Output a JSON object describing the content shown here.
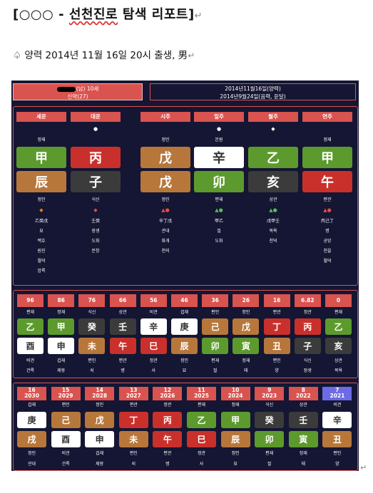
{
  "doc": {
    "title_prefix": "[○○○ - ",
    "title_main": "선천진로",
    "title_rest": " 탐색 리포트]",
    "return_mark": "↵",
    "subtitle": "♤ 양력 2014년 11월 16일 20시 출생, 男"
  },
  "header": {
    "left_line1": "(남) 10세",
    "left_line2": "신약(27)",
    "right_line1": "2014년11월16일(양력)",
    "right_line2": "2014년9월24일(음력, 윤달)"
  },
  "pillars": [
    {
      "label": "세운",
      "top_god": "정재",
      "dot": "",
      "stem": "甲",
      "stem_color": "green",
      "branch": "辰",
      "branch_color": "brown",
      "bottom_god": "정인",
      "sym": "◆",
      "sym_color": "#e67e22",
      "hidden": "乙癸戊",
      "stage": "묘",
      "s1": "백호",
      "s2": "원진",
      "s3": "월덕",
      "s4": "암록"
    },
    {
      "label": "대운",
      "top_god": "",
      "dot": "●",
      "stem": "丙",
      "stem_color": "red",
      "branch": "子",
      "branch_color": "dark",
      "bottom_god": "식신",
      "sym": "◆",
      "sym_color": "#e74c3c",
      "hidden": "壬癸",
      "stage": "장생",
      "s1": "도화",
      "s2": "문창",
      "s3": "",
      "s4": ""
    },
    {
      "label": "시주",
      "top_god": "정인",
      "dot": "",
      "stem": "戊",
      "stem_color": "brown",
      "branch": "戊",
      "branch_color": "brown",
      "bottom_god": "정인",
      "sym": "▲●",
      "sym_color": "#e74c3c",
      "hidden": "辛丁戊",
      "stage": "관대",
      "s1": "화개",
      "s2": "천의",
      "s3": "",
      "s4": ""
    },
    {
      "label": "일주",
      "top_god": "본원",
      "dot": "●",
      "stem": "辛",
      "stem_color": "white",
      "branch": "卯",
      "branch_color": "green",
      "bottom_god": "편재",
      "sym": "▲●",
      "sym_color": "#5cb85c",
      "hidden": "甲乙",
      "stage": "절",
      "s1": "도화",
      "s2": "",
      "s3": "",
      "s4": ""
    },
    {
      "label": "월주",
      "top_god": "",
      "dot": "◆",
      "stem": "乙",
      "stem_color": "green",
      "branch": "亥",
      "branch_color": "dark",
      "bottom_god": "상관",
      "sym": "▲●",
      "sym_color": "#5cb85c",
      "hidden": "戊甲壬",
      "stage": "목욕",
      "s1": "천덕",
      "s2": "",
      "s3": "",
      "s4": ""
    },
    {
      "label": "연주",
      "top_god": "정재",
      "dot": "",
      "stem": "甲",
      "stem_color": "green",
      "branch": "午",
      "branch_color": "red",
      "bottom_god": "편관",
      "sym": "▲●",
      "sym_color": "#e74c3c",
      "hidden": "丙己丁",
      "stage": "병",
      "s1": "공망",
      "s2": "천을",
      "s3": "월덕",
      "s4": ""
    }
  ],
  "daeun": [
    {
      "age": "96",
      "god": "편재",
      "stem": "乙",
      "sc": "green",
      "branch": "酉",
      "bc": "white",
      "bgod": "비견",
      "stage": "건록"
    },
    {
      "age": "86",
      "god": "정재",
      "stem": "甲",
      "sc": "green",
      "branch": "申",
      "bc": "white",
      "bgod": "겁재",
      "stage": "제왕"
    },
    {
      "age": "76",
      "god": "식신",
      "stem": "癸",
      "sc": "dark",
      "branch": "未",
      "bc": "brown",
      "bgod": "편인",
      "stage": "쇠"
    },
    {
      "age": "66",
      "god": "상관",
      "stem": "壬",
      "sc": "dark",
      "branch": "午",
      "bc": "red",
      "bgod": "편관",
      "stage": "병"
    },
    {
      "age": "56",
      "god": "비견",
      "stem": "辛",
      "sc": "white",
      "branch": "巳",
      "bc": "red",
      "bgod": "정관",
      "stage": "사"
    },
    {
      "age": "46",
      "god": "겁재",
      "stem": "庚",
      "sc": "white",
      "branch": "辰",
      "bc": "brown",
      "bgod": "정인",
      "stage": "묘"
    },
    {
      "age": "36",
      "god": "편인",
      "stem": "己",
      "sc": "brown",
      "branch": "卯",
      "bc": "green",
      "bgod": "편재",
      "stage": "절"
    },
    {
      "age": "26",
      "god": "정인",
      "stem": "戊",
      "sc": "brown",
      "branch": "寅",
      "bc": "green",
      "bgod": "정재",
      "stage": "태"
    },
    {
      "age": "16",
      "god": "편관",
      "stem": "丁",
      "sc": "red",
      "branch": "丑",
      "bc": "brown",
      "bgod": "편인",
      "stage": "양"
    },
    {
      "age": "6.82",
      "god": "정관",
      "stem": "丙",
      "sc": "red",
      "branch": "子",
      "bc": "dark",
      "bgod": "식신",
      "stage": "장생"
    },
    {
      "age": "0",
      "god": "편재",
      "stem": "乙",
      "sc": "green",
      "branch": "亥",
      "bc": "dark",
      "bgod": "상관",
      "stage": "목욕"
    }
  ],
  "seun": [
    {
      "age": "16",
      "year": "2030",
      "god": "겁재",
      "stem": "庚",
      "sc": "white",
      "branch": "戌",
      "bc": "brown",
      "bgod": "정인",
      "stage": "관대",
      "blue": false
    },
    {
      "age": "15",
      "year": "2029",
      "god": "편인",
      "stem": "己",
      "sc": "brown",
      "branch": "酉",
      "bc": "white",
      "bgod": "비견",
      "stage": "건록",
      "blue": false
    },
    {
      "age": "14",
      "year": "2028",
      "god": "정인",
      "stem": "戊",
      "sc": "brown",
      "branch": "申",
      "bc": "white",
      "bgod": "겁재",
      "stage": "제왕",
      "blue": false
    },
    {
      "age": "13",
      "year": "2027",
      "god": "편관",
      "stem": "丁",
      "sc": "red",
      "branch": "未",
      "bc": "brown",
      "bgod": "편인",
      "stage": "쇠",
      "blue": false
    },
    {
      "age": "12",
      "year": "2026",
      "god": "정관",
      "stem": "丙",
      "sc": "red",
      "branch": "午",
      "bc": "red",
      "bgod": "편관",
      "stage": "병",
      "blue": false
    },
    {
      "age": "11",
      "year": "2025",
      "god": "편재",
      "stem": "乙",
      "sc": "green",
      "branch": "巳",
      "bc": "red",
      "bgod": "정관",
      "stage": "사",
      "blue": false
    },
    {
      "age": "10",
      "year": "2024",
      "god": "정재",
      "stem": "甲",
      "sc": "green",
      "branch": "辰",
      "bc": "brown",
      "bgod": "정인",
      "stage": "묘",
      "blue": false
    },
    {
      "age": "9",
      "year": "2023",
      "god": "식신",
      "stem": "癸",
      "sc": "dark",
      "branch": "卯",
      "bc": "green",
      "bgod": "편재",
      "stage": "절",
      "blue": false
    },
    {
      "age": "8",
      "year": "2022",
      "god": "상관",
      "stem": "壬",
      "sc": "dark",
      "branch": "寅",
      "bc": "green",
      "bgod": "정재",
      "stage": "태",
      "blue": false
    },
    {
      "age": "7",
      "year": "2021",
      "god": "비견",
      "stem": "辛",
      "sc": "white",
      "branch": "丑",
      "bc": "brown",
      "bgod": "편인",
      "stage": "양",
      "blue": true
    }
  ]
}
